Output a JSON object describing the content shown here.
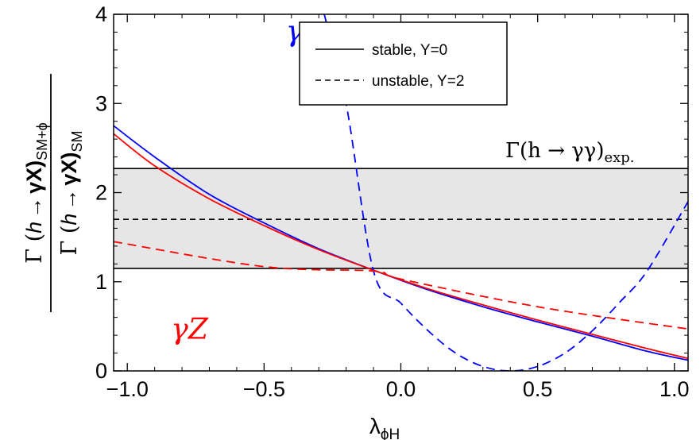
{
  "chart_data": {
    "type": "line",
    "title": "",
    "xlabel": {
      "symbol": "λ",
      "subscript": "ϕH"
    },
    "ylabel": {
      "numerator": {
        "prefix": "Γ (",
        "h": "h",
        "arrow": "→",
        "gx": "γX)",
        "subscript": "SM+ϕ"
      },
      "denominator": {
        "prefix": "Γ (",
        "h": "h",
        "arrow": "→",
        "gx": "γX)",
        "subscript": "SM"
      }
    },
    "xlim": [
      -1.05,
      1.05
    ],
    "ylim": [
      0,
      4
    ],
    "x_ticks": [
      -1.0,
      -0.5,
      0.0,
      0.5,
      1.0
    ],
    "x_tick_labels": [
      "−1.0",
      "−0.5",
      "0.0",
      "0.5",
      "1.0"
    ],
    "y_ticks": [
      0,
      1,
      2,
      3,
      4
    ],
    "y_tick_labels": [
      "0",
      "1",
      "2",
      "3",
      "4"
    ],
    "grid": false,
    "legend_position": "top-center",
    "legend": [
      {
        "label": "stable, Y=0",
        "style": "solid"
      },
      {
        "label": "unstable, Y=2",
        "style": "dashed"
      }
    ],
    "band": {
      "y_low": 1.15,
      "y_high": 2.27,
      "y_central": 1.7,
      "fill": "#e6e6e6",
      "label": "Γ(h → γγ)",
      "label_subscript": "exp."
    },
    "annotations": [
      {
        "text": "γγ",
        "color": "#0000ff",
        "x": -0.42,
        "y": 3.7
      },
      {
        "text": "γZ",
        "color": "#ff0000",
        "x": -0.84,
        "y": 0.36
      }
    ],
    "series": [
      {
        "style": "solid",
        "color": "#0000ff",
        "x": [
          -1.05,
          -0.9,
          -0.7,
          -0.5,
          -0.3,
          -0.1,
          0.1,
          0.3,
          0.5,
          0.7,
          0.9,
          1.05
        ],
        "y": [
          2.75,
          2.4,
          1.98,
          1.66,
          1.37,
          1.13,
          0.91,
          0.72,
          0.55,
          0.39,
          0.22,
          0.12
        ]
      },
      {
        "style": "solid",
        "color": "#ff0000",
        "x": [
          -1.05,
          -0.9,
          -0.7,
          -0.5,
          -0.3,
          -0.1,
          0.1,
          0.3,
          0.5,
          0.7,
          0.9,
          1.05
        ],
        "y": [
          2.66,
          2.3,
          1.93,
          1.63,
          1.36,
          1.13,
          0.92,
          0.74,
          0.57,
          0.41,
          0.25,
          0.14
        ]
      },
      {
        "style": "dashed",
        "color": "#0000ff",
        "x": [
          -0.28,
          -0.2,
          -0.1,
          0.0,
          0.1,
          0.2,
          0.3,
          0.4,
          0.5,
          0.6,
          0.7,
          0.8,
          0.9,
          1.05
        ],
        "y": [
          4.0,
          3.0,
          1.12,
          0.76,
          0.45,
          0.2,
          0.05,
          0.0,
          0.05,
          0.2,
          0.45,
          0.77,
          1.12,
          1.9
        ]
      },
      {
        "style": "dashed",
        "color": "#ff0000",
        "x": [
          -1.05,
          -0.5,
          -0.1,
          0.0,
          0.5,
          1.05
        ],
        "y": [
          1.45,
          1.17,
          1.12,
          1.03,
          0.72,
          0.47
        ]
      }
    ]
  }
}
